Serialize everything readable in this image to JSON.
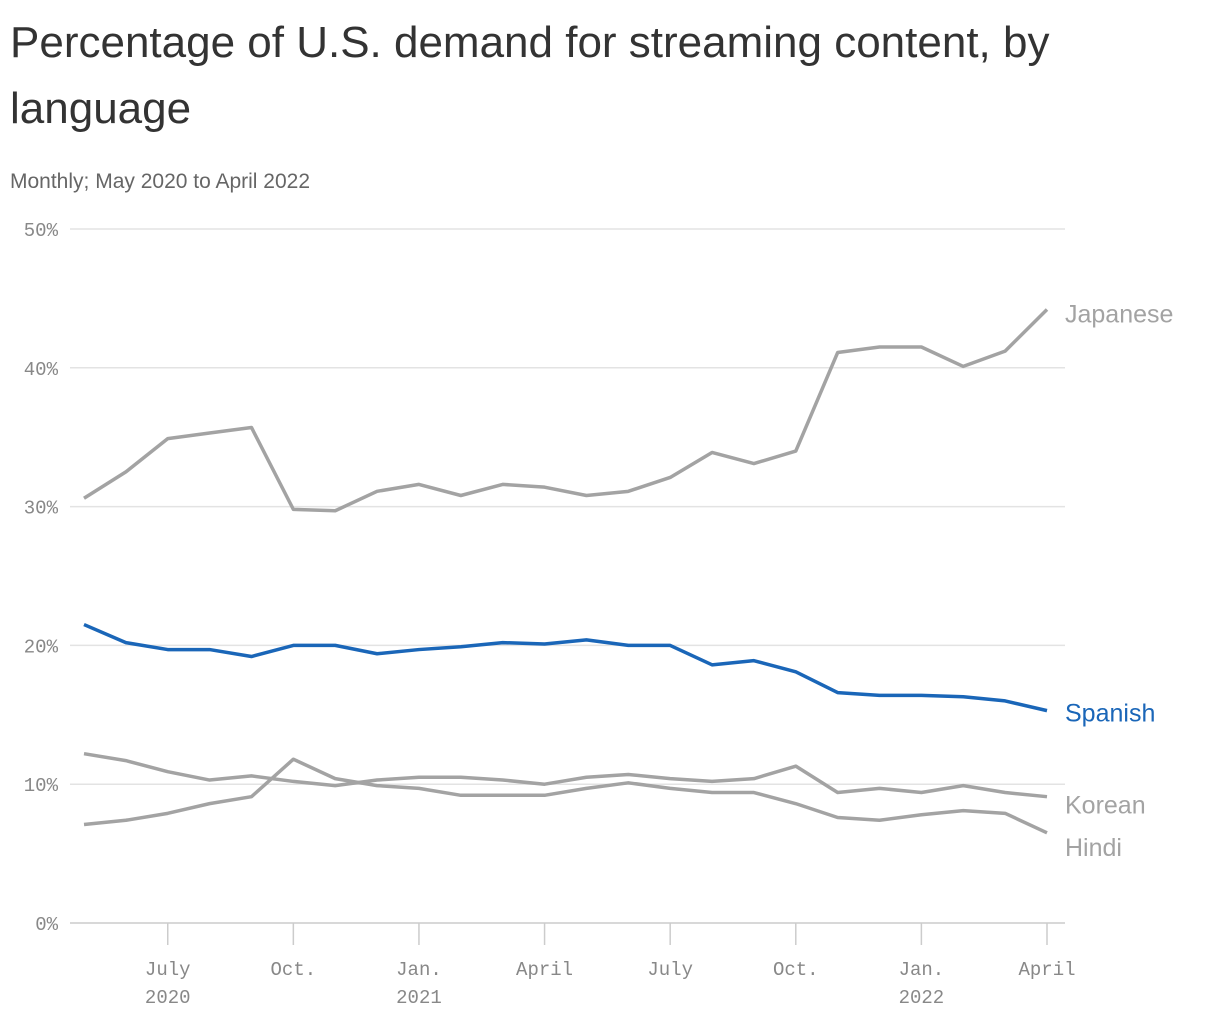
{
  "chart_data": {
    "type": "line",
    "title": "Percentage of U.S. demand for streaming content, by language",
    "subtitle": "Monthly; May 2020 to April 2022",
    "categories": [
      null,
      null,
      "July 2020",
      null,
      null,
      "Oct.",
      null,
      null,
      "Jan. 2021",
      null,
      null,
      "April",
      null,
      null,
      "July",
      null,
      null,
      "Oct.",
      null,
      null,
      "Jan. 2022",
      null,
      null,
      "April"
    ],
    "ylim": [
      0,
      50
    ],
    "yticks": [
      {
        "value": 0,
        "label": "0%"
      },
      {
        "value": 10,
        "label": "10%"
      },
      {
        "value": 20,
        "label": "20%"
      },
      {
        "value": 30,
        "label": "30%"
      },
      {
        "value": 40,
        "label": "40%"
      },
      {
        "value": 50,
        "label": "50%"
      }
    ],
    "grid": true,
    "legend": "line-end",
    "series": [
      {
        "name": "Japanese",
        "color": "#a3a3a3",
        "values": [
          30.6,
          32.5,
          34.9,
          35.3,
          35.7,
          29.8,
          29.7,
          31.1,
          31.6,
          30.8,
          31.6,
          31.4,
          30.8,
          31.1,
          32.1,
          33.9,
          33.1,
          34.0,
          41.1,
          41.5,
          41.5,
          40.1,
          41.2,
          44.2
        ]
      },
      {
        "name": "Spanish",
        "color": "#1a66b8",
        "values": [
          21.5,
          20.2,
          19.7,
          19.7,
          19.2,
          20.0,
          20.0,
          19.4,
          19.7,
          19.9,
          20.2,
          20.1,
          20.4,
          20.0,
          20.0,
          18.6,
          18.9,
          18.1,
          16.6,
          16.4,
          16.4,
          16.3,
          16.0,
          15.3
        ]
      },
      {
        "name": "Korean",
        "color": "#a3a3a3",
        "values": [
          12.2,
          11.7,
          10.9,
          10.3,
          10.6,
          10.2,
          9.9,
          10.3,
          10.5,
          10.5,
          10.3,
          10.0,
          10.5,
          10.7,
          10.4,
          10.2,
          10.4,
          11.3,
          9.4,
          9.7,
          9.4,
          9.9,
          9.4,
          9.1
        ]
      },
      {
        "name": "Hindi",
        "color": "#a3a3a3",
        "values": [
          7.1,
          7.4,
          7.9,
          8.6,
          9.1,
          11.8,
          10.4,
          9.9,
          9.7,
          9.2,
          9.2,
          9.2,
          9.7,
          10.1,
          9.7,
          9.4,
          9.4,
          8.6,
          7.6,
          7.4,
          7.8,
          8.1,
          7.9,
          6.5
        ]
      }
    ]
  }
}
